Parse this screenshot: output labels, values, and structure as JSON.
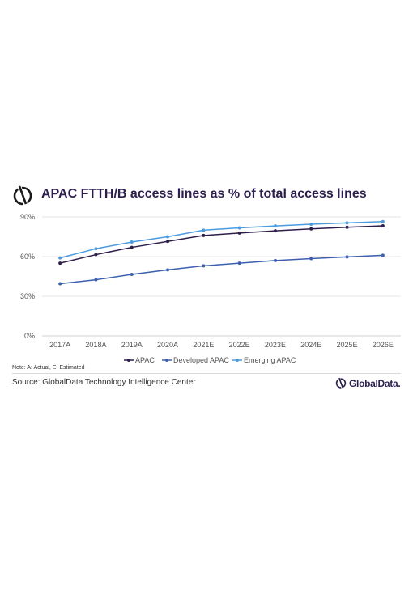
{
  "header": {
    "title": "APAC FTTH/B access lines as % of total access lines",
    "logo_icon": "globaldata-logo-icon"
  },
  "colors": {
    "apac": "#2d1e4a",
    "developed": "#3c5fb0",
    "emerging": "#4a9be0",
    "grid": "#e6e6e6",
    "axis_text": "#555555"
  },
  "chart_data": {
    "type": "line",
    "categories": [
      "2017A",
      "2018A",
      "2019A",
      "2020A",
      "2021E",
      "2022E",
      "2023E",
      "2024E",
      "2025E",
      "2026E"
    ],
    "series": [
      {
        "name": "APAC",
        "values": [
          55,
          61.5,
          67,
          71.5,
          76,
          77.8,
          79.5,
          81,
          82.2,
          83.3
        ]
      },
      {
        "name": "Developed APAC",
        "values": [
          39.5,
          42.5,
          46.5,
          50,
          53,
          55,
          57,
          58.5,
          59.8,
          61
        ]
      },
      {
        "name": "Emerging APAC",
        "values": [
          59,
          66,
          71,
          75,
          80,
          81.7,
          83.2,
          84.5,
          85.5,
          86.5
        ]
      }
    ],
    "yticks": [
      "0%",
      "30%",
      "60%",
      "90%"
    ],
    "ylim": [
      0,
      90
    ],
    "grid": true,
    "legend_position": "bottom"
  },
  "footer": {
    "note": "Note: A: Actual, E: Estimated",
    "source": "Source: GlobalData Technology Intelligence Center",
    "brand": "GlobalData."
  }
}
